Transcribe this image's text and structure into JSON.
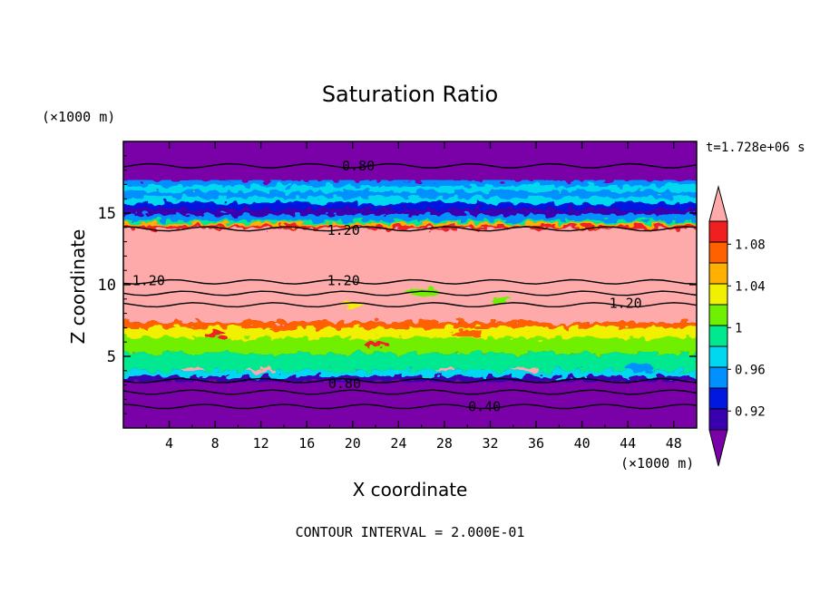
{
  "chart_data": {
    "type": "heatmap",
    "title": "Saturation Ratio",
    "xlabel": "X coordinate",
    "ylabel": "Z coordinate",
    "x_unit": "(×1000 m)",
    "y_unit": "(×1000 m)",
    "time_label": "t=1.728e+06 s",
    "footer": "CONTOUR INTERVAL = 2.000E-01",
    "xlim": [
      0,
      50
    ],
    "ylim": [
      0,
      20
    ],
    "x_ticks": [
      4,
      8,
      12,
      16,
      20,
      24,
      28,
      32,
      36,
      40,
      44,
      48
    ],
    "y_ticks": [
      5,
      10,
      15
    ],
    "colorbar": {
      "labels": [
        "1.08",
        "1.04",
        "1",
        "0.96",
        "0.92"
      ],
      "levels": [
        0.92,
        0.94,
        0.96,
        0.98,
        1.0,
        1.02,
        1.04,
        1.06,
        1.08,
        1.1
      ],
      "colors": [
        "#7a00a8",
        "#3a00b0",
        "#0018e0",
        "#0090ff",
        "#00d8f0",
        "#00e890",
        "#70f000",
        "#f0f000",
        "#ffb000",
        "#ff6000",
        "#f02020",
        "#ffaaaa"
      ]
    },
    "contour_labels": [
      {
        "text": "0.80",
        "x": 20.5,
        "z": 18.3
      },
      {
        "text": "1.20",
        "x": 19.2,
        "z": 13.8
      },
      {
        "text": "1.20",
        "x": 2.2,
        "z": 10.3
      },
      {
        "text": "1.20",
        "x": 19.2,
        "z": 10.3
      },
      {
        "text": "1.20",
        "x": 43.8,
        "z": 8.7
      },
      {
        "text": "0.80",
        "x": 19.3,
        "z": 3.1
      },
      {
        "text": "0.40",
        "x": 31.5,
        "z": 1.5
      }
    ]
  }
}
